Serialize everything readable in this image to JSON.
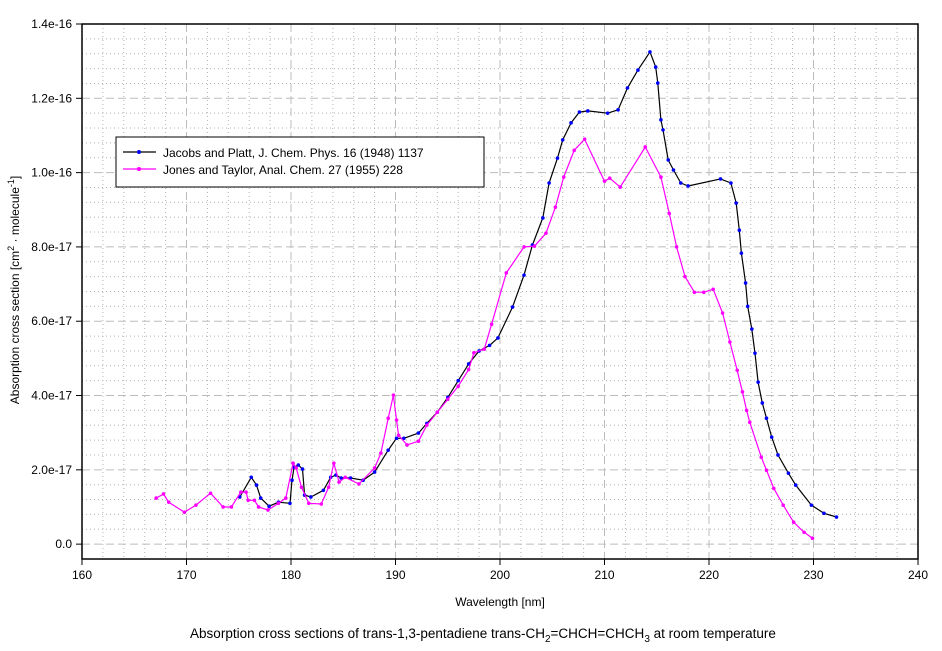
{
  "chart_data": {
    "type": "line",
    "title": "Absorption cross sections of trans-1,3-pentadiene trans-CH2=CHCH=CHCH3 at room temperature",
    "title_parts": [
      "Absorption cross sections of trans-1,3-pentadiene trans-CH",
      "2",
      "=CHCH=CHCH",
      "3",
      " at room temperature"
    ],
    "xlabel": "Wavelength [nm]",
    "ylabel": "Absorption cross section [cm2 · molecule-1]",
    "ylabel_parts": [
      "Absorption cross section [cm",
      "2",
      " · molecule",
      "-1",
      "]"
    ],
    "xlim": [
      160,
      240
    ],
    "ylim": [
      -4e-18,
      1.4e-16
    ],
    "x_ticks": [
      160,
      170,
      180,
      190,
      200,
      210,
      220,
      230,
      240
    ],
    "x_tick_labels": [
      "160",
      "170",
      "180",
      "190",
      "200",
      "210",
      "220",
      "230",
      "240"
    ],
    "y_ticks": [
      0,
      2e-17,
      4e-17,
      6e-17,
      8e-17,
      1e-16,
      1.2e-16,
      1.4e-16
    ],
    "y_tick_labels": [
      "0.0",
      "2.0e-17",
      "4.0e-17",
      "6.0e-17",
      "8.0e-17",
      "1.0e-16",
      "1.2e-16",
      "1.4e-16"
    ],
    "grid": true,
    "legend_position": "upper-left",
    "y_unit_multiplier": 1e-18,
    "series": [
      {
        "name": "Jacobs and Platt, J. Chem. Phys. 16 (1948) 1137",
        "line_color": "#000000",
        "marker_color": "#0000ff",
        "x": [
          175.1,
          176.2,
          176.7,
          177.1,
          177.9,
          178.8,
          179.9,
          180.1,
          180.3,
          180.7,
          181.1,
          181.3,
          181.9,
          183.1,
          183.8,
          184.3,
          184.8,
          185.7,
          186.9,
          188.0,
          189.3,
          190.1,
          190.8,
          192.2,
          193,
          194,
          195,
          196,
          197,
          198,
          199,
          199.8,
          201.2,
          202.3,
          203.1,
          204.1,
          204.7,
          205.5,
          206.0,
          206.8,
          207.6,
          208.4,
          210.3,
          211.3,
          212.2,
          213.2,
          214.35,
          214.9,
          215.1,
          215.4,
          215.6,
          216.1,
          216.6,
          217.3,
          218.0,
          221.1,
          222.1,
          222.6,
          222.9,
          223.1,
          223.5,
          223.7,
          224.1,
          224.4,
          224.7,
          225.1,
          225.5,
          226.0,
          226.6,
          227.6,
          228.3,
          229.8,
          231.0,
          232.2
        ],
        "y": [
          12.7,
          18,
          15.9,
          12.4,
          10.2,
          11.3,
          11,
          17.2,
          20.7,
          21.3,
          20.2,
          13.2,
          12.7,
          14.5,
          18,
          18.6,
          17.8,
          17.8,
          17.2,
          19.4,
          25.3,
          28.5,
          28.5,
          29.9,
          32.5,
          35.5,
          39.5,
          44,
          48.5,
          52,
          53.5,
          55.5,
          63.8,
          72.4,
          80.5,
          87.8,
          97.2,
          103.9,
          108.8,
          113.4,
          116.3,
          116.6,
          116,
          116.9,
          122.8,
          127.6,
          132.5,
          128.4,
          124.1,
          114.2,
          111.5,
          103.4,
          100.7,
          97.2,
          96.4,
          98.3,
          97.2,
          91.8,
          84.5,
          78.3,
          70.3,
          64,
          57.9,
          51.4,
          43.6,
          38,
          33.9,
          28.8,
          24,
          19.1,
          15.9,
          10.5,
          8.3,
          7.3
        ]
      },
      {
        "name": "Jones and Taylor, Anal. Chem. 27 (1955) 228",
        "line_color": "#ff00ff",
        "marker_color": "#ff00ff",
        "x": [
          167.1,
          167.8,
          168.3,
          169.8,
          170.9,
          172.3,
          173.5,
          174.3,
          175.2,
          175.7,
          175.9,
          176.5,
          176.9,
          177.8,
          178.8,
          179.5,
          180.2,
          180.5,
          181.0,
          181.7,
          182.9,
          183.6,
          184.1,
          184.6,
          185.2,
          186.5,
          188.0,
          188.6,
          189.3,
          189.8,
          190.1,
          190.3,
          191.1,
          192.2,
          193,
          194,
          195,
          196,
          197,
          197.5,
          198.5,
          199.2,
          200.6,
          202.3,
          203.3,
          204.4,
          205.3,
          206.1,
          207.1,
          208.1,
          210.0,
          210.5,
          211.5,
          213.9,
          215.4,
          216.2,
          216.9,
          217.7,
          218.6,
          219.5,
          220.4,
          221.3,
          222.0,
          222.7,
          223.2,
          223.6,
          223.9,
          225.0,
          225.5,
          226.2,
          227.1,
          228.1,
          229.1,
          229.9
        ],
        "y": [
          12.4,
          13.5,
          11.3,
          8.6,
          10.5,
          13.7,
          10,
          10,
          14,
          14,
          11.8,
          11.8,
          10,
          9.2,
          11,
          12.4,
          21.8,
          20.5,
          15.3,
          11,
          10.8,
          15.3,
          21.8,
          16.7,
          18,
          16.2,
          20.5,
          24.5,
          33.9,
          40.1,
          33.4,
          29.3,
          26.7,
          27.7,
          32,
          35.5,
          39,
          42.5,
          47,
          51.5,
          52.5,
          59.2,
          73,
          80,
          80.2,
          83.7,
          90.7,
          98.8,
          106,
          109,
          97.7,
          98.5,
          96.1,
          106.9,
          98.8,
          89,
          80,
          72,
          67.8,
          67.8,
          68.6,
          62.2,
          54.4,
          46.8,
          41,
          36,
          32.8,
          23.4,
          19.9,
          15,
          10.5,
          5.9,
          3.2,
          1.6
        ]
      }
    ]
  }
}
